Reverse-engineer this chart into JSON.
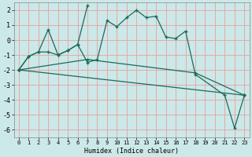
{
  "xlabel": "Humidex (Indice chaleur)",
  "background_color": "#cce8e8",
  "grid_color": "#e8a0a0",
  "line_color": "#1a6b5a",
  "xlim": [
    -0.5,
    23.5
  ],
  "ylim": [
    -6.5,
    2.5
  ],
  "yticks": [
    -6,
    -5,
    -4,
    -3,
    -2,
    -1,
    0,
    1,
    2
  ],
  "xticks": [
    0,
    1,
    2,
    3,
    4,
    5,
    6,
    7,
    8,
    9,
    10,
    11,
    12,
    13,
    14,
    15,
    16,
    17,
    18,
    19,
    20,
    21,
    22,
    23
  ],
  "line1_x": [
    0,
    1,
    2,
    3,
    4,
    5,
    6,
    7,
    8,
    9,
    10,
    11,
    12,
    13,
    14,
    15,
    16,
    17,
    18,
    21,
    22,
    23
  ],
  "line1_y": [
    -2.0,
    -1.1,
    -0.8,
    -0.8,
    -1.0,
    -0.7,
    -0.3,
    -1.5,
    -1.3,
    1.3,
    0.9,
    1.5,
    2.0,
    1.5,
    1.6,
    0.2,
    0.1,
    0.6,
    -2.3,
    -3.7,
    -5.9,
    -3.7
  ],
  "line2_x": [
    0,
    1,
    2,
    3,
    4,
    5,
    6,
    7
  ],
  "line2_y": [
    -2.0,
    -1.1,
    -0.8,
    0.7,
    -1.0,
    -0.7,
    -0.3,
    2.3
  ],
  "trend1_x": [
    0,
    23
  ],
  "trend1_y": [
    -2.0,
    -3.7
  ],
  "trend2_x": [
    0,
    7,
    18,
    23
  ],
  "trend2_y": [
    -2.0,
    -1.3,
    -2.2,
    -3.7
  ]
}
